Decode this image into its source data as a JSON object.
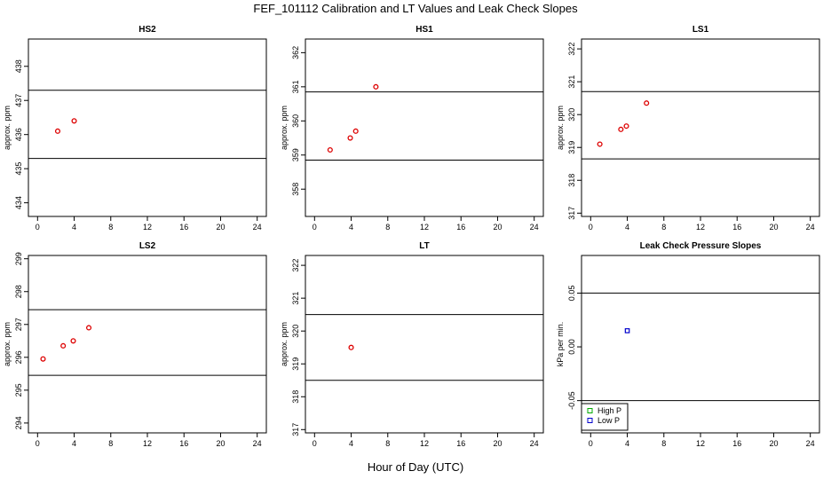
{
  "main_title": "FEF_101112  Calibration and LT Values and Leak Check Slopes",
  "x_axis_label": "Hour of Day (UTC)",
  "chart_data": [
    {
      "type": "scatter",
      "title": "HS2",
      "ylabel": "approx. ppm",
      "xlim": [
        -1,
        25
      ],
      "ylim": [
        433.6,
        438.8
      ],
      "xticks": [
        0,
        4,
        8,
        12,
        16,
        20,
        24
      ],
      "yticks": [
        434,
        435,
        436,
        437,
        438
      ],
      "hlines": [
        437.3,
        435.3
      ],
      "series": [
        {
          "color": "#dd0000",
          "marker": "circle",
          "x": [
            2.2,
            4.0
          ],
          "y": [
            436.1,
            436.4
          ]
        }
      ]
    },
    {
      "type": "scatter",
      "title": "HS1",
      "ylabel": "approx. ppm",
      "xlim": [
        -1,
        25
      ],
      "ylim": [
        357.2,
        362.4
      ],
      "xticks": [
        0,
        4,
        8,
        12,
        16,
        20,
        24
      ],
      "yticks": [
        358,
        359,
        360,
        361,
        362
      ],
      "hlines": [
        360.85,
        358.85
      ],
      "series": [
        {
          "color": "#dd0000",
          "marker": "circle",
          "x": [
            1.7,
            3.9,
            4.5,
            6.7
          ],
          "y": [
            359.15,
            359.5,
            359.7,
            361.0
          ]
        }
      ]
    },
    {
      "type": "scatter",
      "title": "LS1",
      "ylabel": "approx. ppm",
      "xlim": [
        -1,
        25
      ],
      "ylim": [
        316.9,
        322.3
      ],
      "xticks": [
        0,
        4,
        8,
        12,
        16,
        20,
        24
      ],
      "yticks": [
        317,
        318,
        319,
        320,
        321,
        322
      ],
      "hlines": [
        320.7,
        318.65
      ],
      "series": [
        {
          "color": "#dd0000",
          "marker": "circle",
          "x": [
            1.0,
            3.3,
            3.9,
            6.1
          ],
          "y": [
            319.1,
            319.55,
            319.65,
            320.35
          ]
        }
      ]
    },
    {
      "type": "scatter",
      "title": "LS2",
      "ylabel": "approx. ppm",
      "xlim": [
        -1,
        25
      ],
      "ylim": [
        293.7,
        299.1
      ],
      "xticks": [
        0,
        4,
        8,
        12,
        16,
        20,
        24
      ],
      "yticks": [
        294,
        295,
        296,
        297,
        298,
        299
      ],
      "hlines": [
        297.45,
        295.45
      ],
      "series": [
        {
          "color": "#dd0000",
          "marker": "circle",
          "x": [
            0.6,
            2.8,
            3.9,
            5.6
          ],
          "y": [
            295.95,
            296.35,
            296.5,
            296.9
          ]
        }
      ]
    },
    {
      "type": "scatter",
      "title": "LT",
      "ylabel": "approx. ppm",
      "xlim": [
        -1,
        25
      ],
      "ylim": [
        316.9,
        322.3
      ],
      "xticks": [
        0,
        4,
        8,
        12,
        16,
        20,
        24
      ],
      "yticks": [
        317,
        318,
        319,
        320,
        321,
        322
      ],
      "hlines": [
        320.5,
        318.5
      ],
      "series": [
        {
          "color": "#dd0000",
          "marker": "circle",
          "x": [
            4.0
          ],
          "y": [
            319.5
          ]
        }
      ]
    },
    {
      "type": "scatter",
      "title": "Leak Check Pressure Slopes",
      "ylabel": "kPa per min.",
      "xlim": [
        -1,
        25
      ],
      "ylim": [
        -0.08,
        0.085
      ],
      "xticks": [
        0,
        4,
        8,
        12,
        16,
        20,
        24
      ],
      "yticks": [
        -0.05,
        0.0,
        0.05
      ],
      "ytick_labels": [
        "-0.05",
        "0.00",
        "0.05"
      ],
      "hlines": [
        0.05,
        -0.05
      ],
      "series": [
        {
          "name": "High P",
          "color": "#00aa00",
          "marker": "square",
          "x": [],
          "y": []
        },
        {
          "name": "Low P",
          "color": "#0000cc",
          "marker": "square",
          "x": [
            4.0
          ],
          "y": [
            0.015
          ]
        }
      ],
      "legend": "bottom-left"
    }
  ]
}
